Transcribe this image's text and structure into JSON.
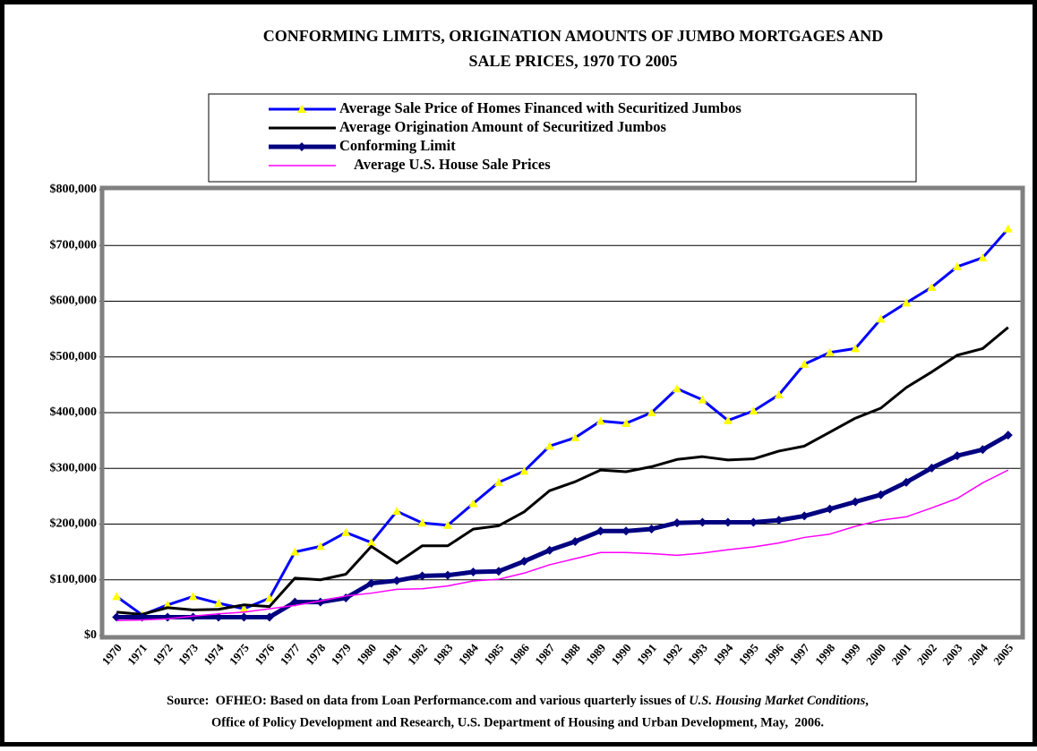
{
  "chart_data": {
    "type": "line",
    "title": [
      "CONFORMING LIMITS, ORIGINATION AMOUNTS OF JUMBO MORTGAGES AND",
      "SALE PRICES, 1970 TO 2005"
    ],
    "categories": [
      "1970",
      "1971",
      "1972",
      "1973",
      "1974",
      "1975",
      "1976",
      "1977",
      "1978",
      "1979",
      "1980",
      "1981",
      "1982",
      "1983",
      "1984",
      "1985",
      "1986",
      "1987",
      "1988",
      "1989",
      "1990",
      "1991",
      "1992",
      "1993",
      "1994",
      "1995",
      "1996",
      "1997",
      "1998",
      "1999",
      "2000",
      "2001",
      "2002",
      "2003",
      "2004",
      "2005"
    ],
    "series": [
      {
        "name": "Average Sale Price of Homes Financed with Securitized Jumbos",
        "color": "#0000ff",
        "marker": "triangle",
        "marker_color": "#ffff00",
        "line_width": 3,
        "values": [
          70000,
          37000,
          55000,
          70000,
          58000,
          48000,
          67000,
          150000,
          160000,
          185000,
          167000,
          223000,
          202000,
          198000,
          237000,
          275000,
          295000,
          340000,
          355000,
          385000,
          381000,
          400000,
          443000,
          423000,
          386000,
          403000,
          432000,
          487000,
          508000,
          515000,
          568000,
          597000,
          625000,
          662000,
          678000,
          730000
        ]
      },
      {
        "name": "Average Origination Amount of Securitized Jumbos",
        "color": "#000000",
        "line_width": 3,
        "values": [
          42000,
          38000,
          50000,
          46000,
          47000,
          55000,
          52000,
          103000,
          100000,
          110000,
          160000,
          130000,
          161000,
          161000,
          191000,
          197000,
          222000,
          260000,
          276000,
          297000,
          294000,
          303000,
          316000,
          321000,
          315000,
          317000,
          331000,
          340000,
          365000,
          390000,
          408000,
          445000,
          473000,
          503000,
          515000,
          553000
        ]
      },
      {
        "name": "Conforming Limit",
        "color": "#000080",
        "marker": "diamond",
        "marker_color": "#000080",
        "line_width": 5,
        "values": [
          33000,
          33000,
          33000,
          33000,
          33000,
          33000,
          33000,
          60000,
          60000,
          67500,
          93750,
          98500,
          107000,
          108300,
          114000,
          115300,
          133250,
          153100,
          168700,
          187600,
          187450,
          191250,
          202300,
          203150,
          203150,
          203150,
          207000,
          214600,
          227150,
          240000,
          252700,
          275000,
          300700,
          322700,
          333700,
          359650
        ]
      },
      {
        "name": "Average U.S. House Sale Prices",
        "color": "#ff00ff",
        "line_width": 1.5,
        "values": [
          27000,
          28000,
          30000,
          35000,
          39000,
          42000,
          48000,
          54000,
          62000,
          71000,
          76000,
          83000,
          84000,
          89000,
          98000,
          101000,
          112000,
          127000,
          138000,
          149000,
          149000,
          147000,
          144000,
          148000,
          154000,
          159000,
          166000,
          176000,
          182000,
          196000,
          207000,
          213000,
          229000,
          246000,
          274000,
          297000
        ]
      }
    ],
    "ylim": [
      0,
      800000
    ],
    "yticks": [
      {
        "value": 0,
        "label": "$0"
      },
      {
        "value": 100000,
        "label": "$100,000"
      },
      {
        "value": 200000,
        "label": "$200,000"
      },
      {
        "value": 300000,
        "label": "$300,000"
      },
      {
        "value": 400000,
        "label": "$400,000"
      },
      {
        "value": 500000,
        "label": "$500,000"
      },
      {
        "value": 600000,
        "label": "$600,000"
      },
      {
        "value": 700000,
        "label": "$700,000"
      },
      {
        "value": 800000,
        "label": "$800,000"
      }
    ],
    "grid": true,
    "source": {
      "prefix": "Source:  OFHEO: Based on data from Loan Performance.com and various quarterly issues of ",
      "italic": "U.S. Housing Market Conditions",
      "suffix": ",",
      "line2": "Office of Policy Development and Research, U.S. Department of Housing and Urban Development, May,  2006."
    }
  }
}
